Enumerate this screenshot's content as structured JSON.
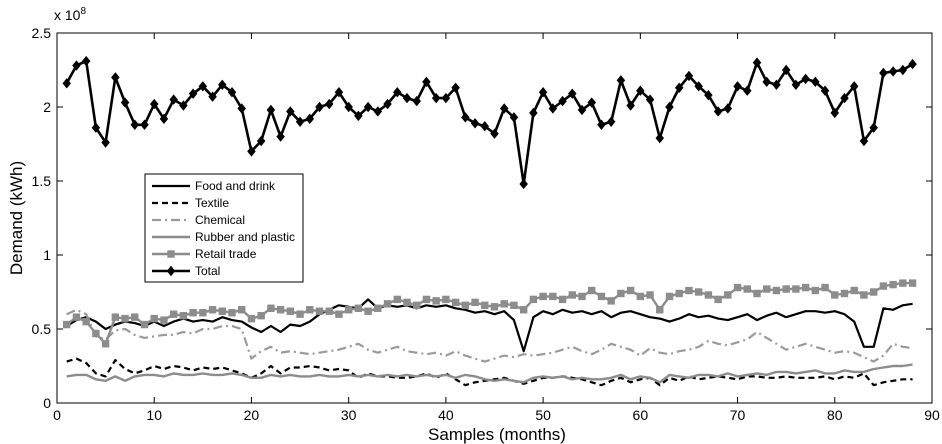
{
  "chart_data": {
    "type": "line",
    "title": "",
    "xlabel": "Samples (months)",
    "ylabel": "Demand (kWh)",
    "y_exponent_label": "x 10",
    "y_exponent_power": "8",
    "xlim": [
      0,
      90
    ],
    "ylim": [
      0,
      2.5
    ],
    "y_scale_factor": 100000000,
    "grid": false,
    "legend_position": "center-left",
    "x_ticks": [
      0,
      10,
      20,
      30,
      40,
      50,
      60,
      70,
      80,
      90
    ],
    "x_tick_labels": [
      "0",
      "10",
      "20",
      "30",
      "40",
      "50",
      "60",
      "70",
      "80",
      "90"
    ],
    "y_ticks": [
      0,
      0.5,
      1,
      1.5,
      2,
      2.5
    ],
    "y_tick_labels": [
      "0",
      "0.5",
      "1",
      "1.5",
      "2",
      "2.5"
    ],
    "x": [
      1,
      2,
      3,
      4,
      5,
      6,
      7,
      8,
      9,
      10,
      11,
      12,
      13,
      14,
      15,
      16,
      17,
      18,
      19,
      20,
      21,
      22,
      23,
      24,
      25,
      26,
      27,
      28,
      29,
      30,
      31,
      32,
      33,
      34,
      35,
      36,
      37,
      38,
      39,
      40,
      41,
      42,
      43,
      44,
      45,
      46,
      47,
      48,
      49,
      50,
      51,
      52,
      53,
      54,
      55,
      56,
      57,
      58,
      59,
      60,
      61,
      62,
      63,
      64,
      65,
      66,
      67,
      68,
      69,
      70,
      71,
      72,
      73,
      74,
      75,
      76,
      77,
      78,
      79,
      80,
      81,
      82,
      83,
      84,
      85,
      86,
      87,
      88
    ],
    "series": [
      {
        "name": "Food and drink",
        "color": "#000000",
        "style": "solid",
        "width": 2.2,
        "marker": "none",
        "values": [
          0.52,
          0.56,
          0.58,
          0.55,
          0.5,
          0.53,
          0.55,
          0.54,
          0.52,
          0.55,
          0.52,
          0.55,
          0.57,
          0.55,
          0.56,
          0.55,
          0.58,
          0.56,
          0.55,
          0.51,
          0.48,
          0.52,
          0.48,
          0.53,
          0.52,
          0.55,
          0.6,
          0.63,
          0.66,
          0.65,
          0.64,
          0.7,
          0.64,
          0.66,
          0.65,
          0.66,
          0.64,
          0.66,
          0.65,
          0.66,
          0.64,
          0.63,
          0.61,
          0.62,
          0.6,
          0.62,
          0.56,
          0.35,
          0.58,
          0.62,
          0.6,
          0.63,
          0.61,
          0.62,
          0.6,
          0.62,
          0.58,
          0.61,
          0.62,
          0.6,
          0.58,
          0.57,
          0.55,
          0.57,
          0.6,
          0.58,
          0.59,
          0.57,
          0.56,
          0.58,
          0.6,
          0.56,
          0.59,
          0.61,
          0.58,
          0.6,
          0.62,
          0.62,
          0.61,
          0.62,
          0.6,
          0.55,
          0.38,
          0.38,
          0.64,
          0.63,
          0.66,
          0.67
        ]
      },
      {
        "name": "Textile",
        "color": "#000000",
        "style": "dashed",
        "width": 2.2,
        "marker": "none",
        "values": [
          0.28,
          0.3,
          0.27,
          0.2,
          0.18,
          0.29,
          0.23,
          0.2,
          0.22,
          0.25,
          0.23,
          0.25,
          0.24,
          0.22,
          0.24,
          0.23,
          0.24,
          0.22,
          0.2,
          0.17,
          0.2,
          0.25,
          0.2,
          0.24,
          0.24,
          0.25,
          0.24,
          0.22,
          0.23,
          0.22,
          0.17,
          0.2,
          0.18,
          0.18,
          0.17,
          0.17,
          0.18,
          0.2,
          0.17,
          0.2,
          0.16,
          0.12,
          0.14,
          0.15,
          0.16,
          0.17,
          0.15,
          0.13,
          0.15,
          0.17,
          0.17,
          0.18,
          0.17,
          0.16,
          0.14,
          0.12,
          0.15,
          0.17,
          0.14,
          0.16,
          0.17,
          0.12,
          0.17,
          0.15,
          0.18,
          0.16,
          0.17,
          0.18,
          0.17,
          0.16,
          0.18,
          0.18,
          0.17,
          0.17,
          0.18,
          0.17,
          0.17,
          0.17,
          0.18,
          0.16,
          0.18,
          0.17,
          0.2,
          0.12,
          0.14,
          0.15,
          0.16,
          0.16
        ]
      },
      {
        "name": "Chemical",
        "color": "#9a9a9a",
        "style": "dashdot",
        "width": 2.2,
        "marker": "none",
        "values": [
          0.6,
          0.63,
          0.6,
          0.45,
          0.43,
          0.49,
          0.5,
          0.46,
          0.44,
          0.45,
          0.46,
          0.46,
          0.48,
          0.47,
          0.5,
          0.5,
          0.52,
          0.52,
          0.5,
          0.3,
          0.35,
          0.38,
          0.34,
          0.35,
          0.34,
          0.33,
          0.34,
          0.35,
          0.36,
          0.38,
          0.4,
          0.36,
          0.34,
          0.36,
          0.38,
          0.35,
          0.34,
          0.33,
          0.34,
          0.32,
          0.35,
          0.32,
          0.3,
          0.28,
          0.3,
          0.32,
          0.31,
          0.33,
          0.32,
          0.33,
          0.34,
          0.36,
          0.38,
          0.35,
          0.33,
          0.36,
          0.4,
          0.38,
          0.36,
          0.32,
          0.37,
          0.34,
          0.33,
          0.35,
          0.36,
          0.38,
          0.42,
          0.4,
          0.39,
          0.41,
          0.43,
          0.48,
          0.44,
          0.4,
          0.36,
          0.38,
          0.4,
          0.38,
          0.36,
          0.34,
          0.35,
          0.34,
          0.31,
          0.28,
          0.32,
          0.4,
          0.38,
          0.37
        ]
      },
      {
        "name": "Rubber and plastic",
        "color": "#8c8c8c",
        "style": "solid",
        "width": 2.4,
        "marker": "none",
        "values": [
          0.18,
          0.19,
          0.19,
          0.16,
          0.15,
          0.18,
          0.15,
          0.18,
          0.19,
          0.19,
          0.18,
          0.2,
          0.19,
          0.19,
          0.2,
          0.19,
          0.19,
          0.2,
          0.19,
          0.17,
          0.17,
          0.19,
          0.18,
          0.19,
          0.18,
          0.18,
          0.19,
          0.18,
          0.18,
          0.19,
          0.18,
          0.19,
          0.18,
          0.19,
          0.18,
          0.19,
          0.18,
          0.19,
          0.18,
          0.19,
          0.17,
          0.19,
          0.18,
          0.16,
          0.15,
          0.16,
          0.15,
          0.14,
          0.17,
          0.18,
          0.17,
          0.18,
          0.16,
          0.17,
          0.16,
          0.16,
          0.17,
          0.19,
          0.16,
          0.18,
          0.17,
          0.14,
          0.19,
          0.18,
          0.17,
          0.19,
          0.19,
          0.18,
          0.2,
          0.18,
          0.19,
          0.2,
          0.19,
          0.21,
          0.21,
          0.2,
          0.21,
          0.22,
          0.2,
          0.2,
          0.22,
          0.21,
          0.21,
          0.23,
          0.24,
          0.25,
          0.25,
          0.26
        ]
      },
      {
        "name": "Retail trade",
        "color": "#8c8c8c",
        "style": "solid",
        "width": 2.4,
        "marker": "square",
        "values": [
          0.53,
          0.58,
          0.55,
          0.47,
          0.4,
          0.58,
          0.57,
          0.58,
          0.53,
          0.57,
          0.56,
          0.6,
          0.59,
          0.61,
          0.61,
          0.63,
          0.62,
          0.61,
          0.63,
          0.57,
          0.59,
          0.64,
          0.63,
          0.62,
          0.6,
          0.63,
          0.62,
          0.62,
          0.6,
          0.63,
          0.64,
          0.62,
          0.64,
          0.67,
          0.7,
          0.68,
          0.66,
          0.7,
          0.69,
          0.7,
          0.68,
          0.66,
          0.68,
          0.66,
          0.65,
          0.67,
          0.66,
          0.63,
          0.7,
          0.72,
          0.72,
          0.7,
          0.73,
          0.72,
          0.76,
          0.72,
          0.69,
          0.74,
          0.76,
          0.72,
          0.73,
          0.63,
          0.72,
          0.74,
          0.76,
          0.75,
          0.73,
          0.7,
          0.73,
          0.78,
          0.77,
          0.74,
          0.77,
          0.76,
          0.77,
          0.77,
          0.78,
          0.76,
          0.78,
          0.73,
          0.74,
          0.76,
          0.73,
          0.75,
          0.79,
          0.8,
          0.81,
          0.81
        ]
      },
      {
        "name": "Total",
        "color": "#000000",
        "style": "solid",
        "width": 2.6,
        "marker": "diamond",
        "values": [
          2.16,
          2.28,
          2.31,
          1.86,
          1.76,
          2.2,
          2.03,
          1.88,
          1.88,
          2.02,
          1.92,
          2.05,
          2.01,
          2.09,
          2.14,
          2.07,
          2.15,
          2.1,
          1.99,
          1.7,
          1.77,
          1.98,
          1.8,
          1.97,
          1.9,
          1.92,
          2.0,
          2.02,
          2.1,
          2.0,
          1.94,
          2.0,
          1.97,
          2.02,
          2.1,
          2.06,
          2.04,
          2.17,
          2.06,
          2.06,
          2.13,
          1.93,
          1.89,
          1.87,
          1.82,
          1.99,
          1.93,
          1.48,
          1.96,
          2.1,
          1.99,
          2.04,
          2.09,
          1.98,
          2.03,
          1.88,
          1.9,
          2.18,
          2.01,
          2.11,
          2.05,
          1.79,
          2.0,
          2.13,
          2.21,
          2.14,
          2.08,
          1.97,
          1.99,
          2.14,
          2.11,
          2.3,
          2.17,
          2.15,
          2.25,
          2.15,
          2.19,
          2.17,
          2.11,
          1.96,
          2.06,
          2.14,
          1.77,
          1.86,
          2.23,
          2.24,
          2.25,
          2.29
        ]
      }
    ]
  }
}
